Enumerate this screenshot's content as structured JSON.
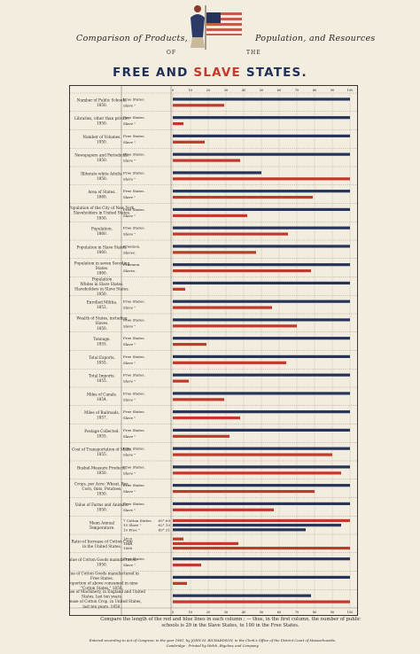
{
  "title": {
    "left": "Comparison of Products,",
    "right": "Population, and Resources",
    "of": "OF",
    "the": "THE",
    "free": "FREE AND",
    "slave": "SLAVE",
    "states": "STATES."
  },
  "footnote": "Compare the length of the red and blue lines in each column ; — thus, in the first column, the number of public schools is 29 in the Slave States, to 100 in the Free States.",
  "credit1": "Entered according to Act of Congress, in the year 1861, by JOHN M. RICHARDSON, in the Clerk's Office of the District Court of Massachusetts.",
  "credit2": "Cambridge : Printed by Welch, Bigelow, and Company.",
  "colors": {
    "free": "#26345a",
    "slave": "#c0392b",
    "background": "#f3ede0",
    "ink": "#2a2520"
  },
  "chart_data": {
    "type": "bar",
    "orientation": "horizontal",
    "xlim": [
      0,
      100
    ],
    "x_ticks": [
      "0",
      "10",
      "20",
      "30",
      "40",
      "50",
      "60",
      "70",
      "80",
      "90",
      "100"
    ],
    "rows": [
      {
        "label": [
          "Number of Public Schools.",
          "1850."
        ],
        "series": [
          [
            "Free States.",
            100,
            "free"
          ],
          [
            "Slave \"",
            29,
            "slave"
          ]
        ]
      },
      {
        "label": [
          "Libraries, other than private.",
          "1850."
        ],
        "series": [
          [
            "Free States.",
            100,
            "free"
          ],
          [
            "Slave \"",
            6,
            "slave"
          ]
        ]
      },
      {
        "label": [
          "Number of Volumes.",
          "1850."
        ],
        "series": [
          [
            "Free States.",
            100,
            "free"
          ],
          [
            "Slave \"",
            18,
            "slave"
          ]
        ]
      },
      {
        "label": [
          "Newspapers and Periodicals.",
          "1850."
        ],
        "series": [
          [
            "Free States.",
            100,
            "free"
          ],
          [
            "Slave \"",
            38,
            "slave"
          ]
        ]
      },
      {
        "label": [
          "Illiterate white Adults.",
          "1850."
        ],
        "series": [
          [
            "Free States.",
            50,
            "free"
          ],
          [
            "Slave \"",
            100,
            "slave"
          ]
        ]
      },
      {
        "label": [
          "Area of States.",
          "1860."
        ],
        "series": [
          [
            "Free States.",
            100,
            "free"
          ],
          [
            "Slave \"",
            79,
            "slave"
          ]
        ]
      },
      {
        "label": [
          "Population of the City of New York.",
          "Slaveholders in United States.",
          "1850."
        ],
        "series": [
          [
            "Free States.",
            100,
            "free"
          ],
          [
            "Slave \"",
            42,
            "slave"
          ]
        ]
      },
      {
        "label": [
          "Population.",
          "1860."
        ],
        "series": [
          [
            "Free States.",
            100,
            "free"
          ],
          [
            "Slave \"",
            65,
            "slave"
          ]
        ]
      },
      {
        "label": [
          "Population in Slave States.",
          "1860."
        ],
        "series": [
          [
            "Freemen.",
            100,
            "free"
          ],
          [
            "Slaves.",
            47,
            "slave"
          ]
        ]
      },
      {
        "label": [
          "Population in seven Seceding",
          "States.",
          "1860."
        ],
        "series": [
          [
            "Freemen.",
            100,
            "free"
          ],
          [
            "Slaves.",
            78,
            "slave"
          ]
        ]
      },
      {
        "label": [
          "Population",
          "Whites in Slave States.",
          "Slaveholders in Slave States.",
          "1850."
        ],
        "series": [
          [
            "",
            100,
            "free"
          ],
          [
            "",
            7,
            "slave"
          ]
        ]
      },
      {
        "label": [
          "Enrolled Militia.",
          "1852."
        ],
        "series": [
          [
            "Free States.",
            100,
            "free"
          ],
          [
            "Slave \"",
            56,
            "slave"
          ]
        ]
      },
      {
        "label": [
          "Wealth of States, including",
          "Slaves.",
          "1850."
        ],
        "series": [
          [
            "Free States.",
            100,
            "free"
          ],
          [
            "Slave \"",
            70,
            "slave"
          ]
        ]
      },
      {
        "label": [
          "Tonnage.",
          "1855."
        ],
        "series": [
          [
            "Free States.",
            100,
            "free"
          ],
          [
            "Slave \"",
            19,
            "slave"
          ]
        ]
      },
      {
        "label": [
          "Total Exports.",
          "1855."
        ],
        "series": [
          [
            "Free States.",
            100,
            "free"
          ],
          [
            "Slave \"",
            64,
            "slave"
          ]
        ]
      },
      {
        "label": [
          "Total Imports.",
          "1855."
        ],
        "series": [
          [
            "Free States.",
            100,
            "free"
          ],
          [
            "Slave \"",
            9,
            "slave"
          ]
        ]
      },
      {
        "label": [
          "Miles of Canals.",
          "1854."
        ],
        "series": [
          [
            "Free States.",
            100,
            "free"
          ],
          [
            "Slave \"",
            29,
            "slave"
          ]
        ]
      },
      {
        "label": [
          "Miles of Railroads.",
          "1857."
        ],
        "series": [
          [
            "Free States.",
            100,
            "free"
          ],
          [
            "Slave \"",
            38,
            "slave"
          ]
        ]
      },
      {
        "label": [
          "Postage Collected.",
          "1855."
        ],
        "series": [
          [
            "Free States.",
            100,
            "free"
          ],
          [
            "Slave \"",
            32,
            "slave"
          ]
        ]
      },
      {
        "label": [
          "Cost of Transportation of Mails.",
          "1855."
        ],
        "series": [
          [
            "Free States.",
            100,
            "free"
          ],
          [
            "Slave \"",
            90,
            "slave"
          ]
        ]
      },
      {
        "label": [
          "Bushel-Measure Products.",
          "1850."
        ],
        "series": [
          [
            "Free States.",
            100,
            "free"
          ],
          [
            "Slave \"",
            95,
            "slave"
          ]
        ]
      },
      {
        "label": [
          "Crops, per Acre: Wheat, Rye,",
          "Corn, Oats, Potatoes.",
          "1850."
        ],
        "series": [
          [
            "Free States.",
            100,
            "free"
          ],
          [
            "Slave \"",
            80,
            "slave"
          ]
        ]
      },
      {
        "label": [
          "Value of Farms and Animals.",
          "1850."
        ],
        "series": [
          [
            "Free States.",
            100,
            "free"
          ],
          [
            "Slave \"",
            57,
            "slave"
          ]
        ]
      },
      {
        "label": [
          "Mean Annual",
          "Temperature."
        ],
        "side": [
          "7 Cotton States.",
          "15 Slave \"",
          "19 Free \""
        ],
        "values_text": [
          "65°.69",
          "62°.10",
          "49°.31"
        ],
        "series": [
          [
            "",
            100,
            "slave"
          ],
          [
            "",
            95,
            "free"
          ],
          [
            "",
            75,
            "free"
          ]
        ]
      },
      {
        "label": [
          "Ratio of Increase of Cotton Crop",
          "in the United States."
        ],
        "side": [
          "1820.",
          "1840.",
          "1860."
        ],
        "series": [
          [
            "",
            6,
            "slave"
          ],
          [
            "",
            37,
            "slave"
          ],
          [
            "",
            100,
            "slave"
          ]
        ]
      },
      {
        "label": [
          "Value of Cotton Goods manufactured.",
          "1850."
        ],
        "series": [
          [
            "Free States.",
            100,
            "free"
          ],
          [
            "Slave \"",
            16,
            "slave"
          ]
        ]
      },
      {
        "label": [
          "Value of Cotton Goods manufactured in",
          "Free States.",
          "Proportion of above consumed in nine",
          "\"Cotton States.\" 1850."
        ],
        "series": [
          [
            "",
            100,
            "free"
          ],
          [
            "",
            8,
            "slave"
          ]
        ]
      },
      {
        "label": [
          "Increase of Machinery, in England and United",
          "States, last ten years.",
          "Increase of Cotton Crop, in United States,",
          "last ten years. 1850."
        ],
        "series": [
          [
            "",
            78,
            "free"
          ],
          [
            "",
            100,
            "slave"
          ]
        ]
      }
    ]
  }
}
